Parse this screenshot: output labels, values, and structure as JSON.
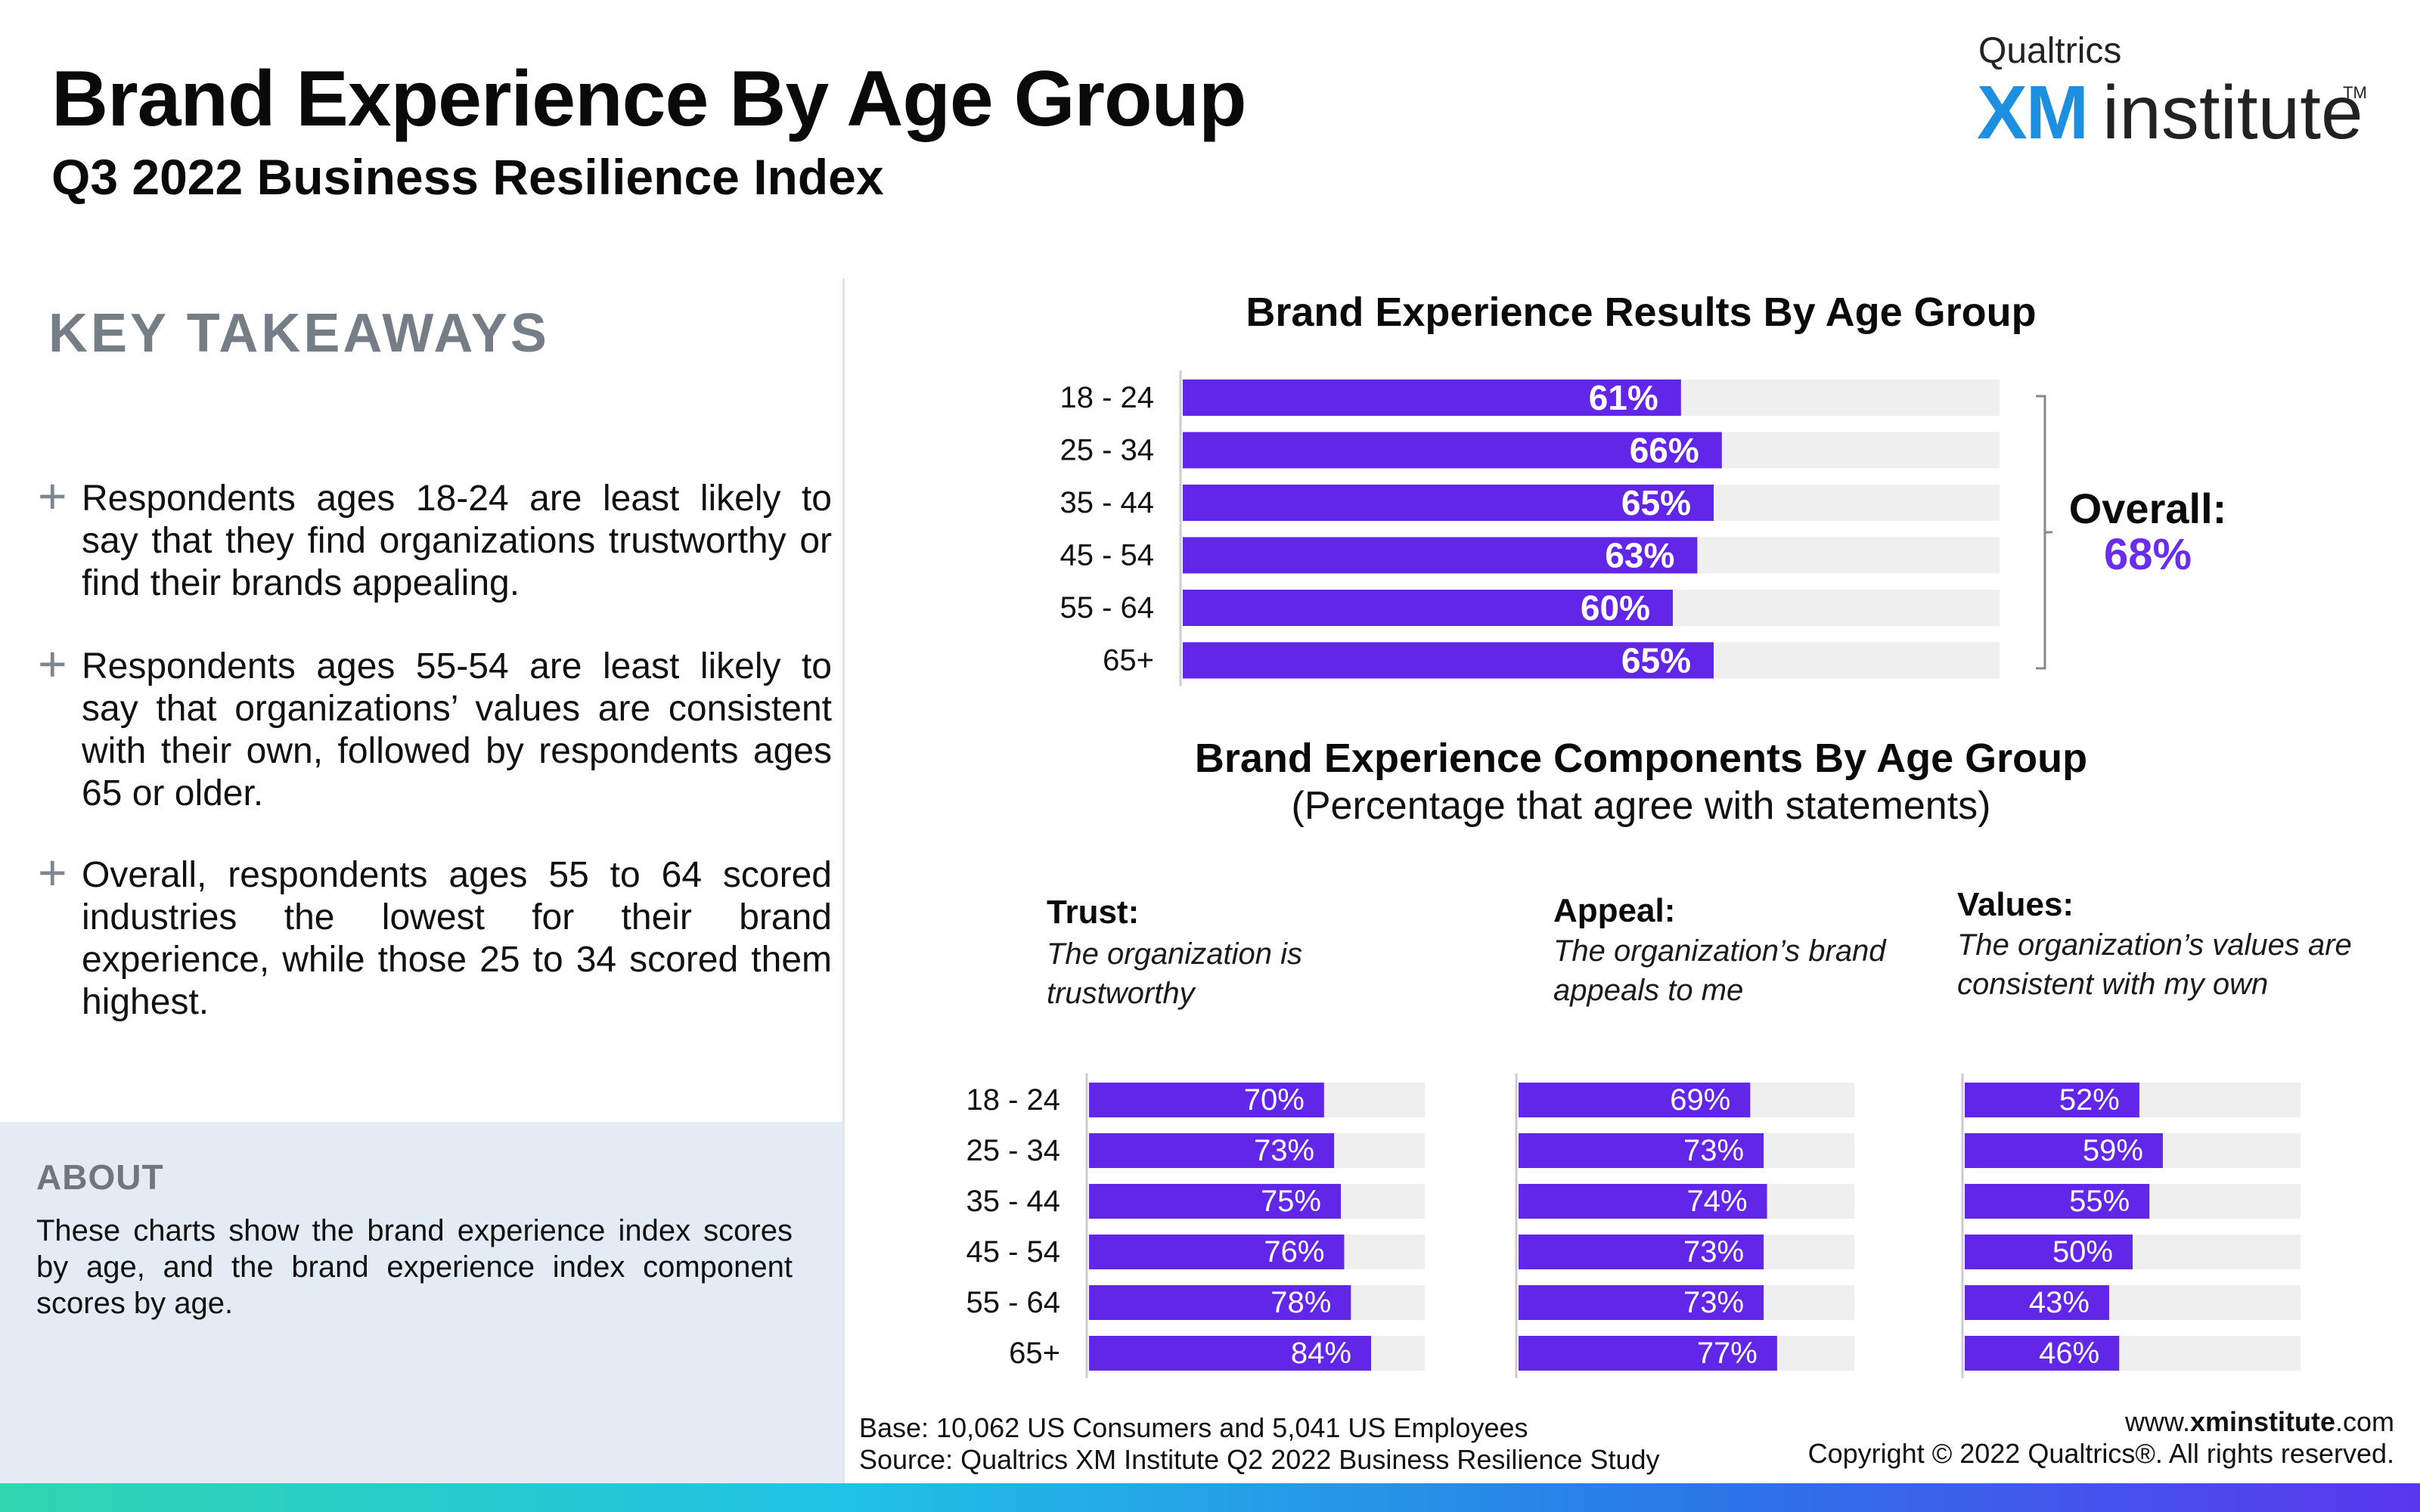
{
  "header": {
    "title": "Brand Experience By Age Group",
    "subtitle": "Q3 2022 Business Resilience Index"
  },
  "logo": {
    "brand": "Qualtrics",
    "xm": "XM",
    "institute": "institute",
    "tm": "TM"
  },
  "takeaways": {
    "heading": "KEY TAKEAWAYS",
    "items": [
      "Respondents ages 18-24 are least likely to say that they find organizations trustworthy or find their brands appealing.",
      "Respondents ages 55-54 are least likely to say that organizations’ values are consistent with their own, followed by respondents ages 65 or older.",
      "Overall, respondents ages 55 to 64 scored industries the lowest for their brand experience, while those 25 to 34 scored them highest."
    ]
  },
  "about": {
    "heading": "ABOUT",
    "text": "These charts show the brand experience index scores by age, and the brand experience index component scores by age."
  },
  "overall": {
    "label": "Overall:",
    "value": "68%"
  },
  "components": {
    "title": "Brand Experience Components By Age Group",
    "subtitle": "(Percentage that agree with statements)",
    "trust": {
      "heading": "Trust:",
      "description": "The organization is trustworthy"
    },
    "appeal": {
      "heading": "Appeal:",
      "description": "The organization’s brand appeals to me"
    },
    "values": {
      "heading": "Values:",
      "description": "The organization’s values are consistent with my own"
    }
  },
  "footer": {
    "base": "Base: 10,062 US Consumers and 5,041 US Employees",
    "source": "Source: Qualtrics XM Institute Q2 2022 Business Resilience Study",
    "url_prefix": "www.",
    "url_bold": "xminstitute",
    "url_suffix": ".com",
    "copyright": "Copyright © 2022 Qualtrics®. All rights reserved."
  },
  "colors": {
    "bar": "#6126e8",
    "track": "#efefef",
    "accent": "#6a2df0"
  },
  "chart_data": [
    {
      "type": "bar",
      "orientation": "horizontal",
      "title": "Brand Experience Results By Age Group",
      "categories": [
        "18 - 24",
        "25 - 34",
        "35 - 44",
        "45 - 54",
        "55 - 64",
        "65+"
      ],
      "values": [
        61,
        66,
        65,
        63,
        60,
        65
      ],
      "labels": [
        "61%",
        "66%",
        "65%",
        "63%",
        "60%",
        "65%"
      ],
      "xlim": [
        0,
        100
      ],
      "grid": false
    },
    {
      "type": "bar",
      "orientation": "horizontal",
      "title": "Trust:",
      "categories": [
        "18 - 24",
        "25 - 34",
        "35 - 44",
        "45 - 54",
        "55 - 64",
        "65+"
      ],
      "values": [
        70,
        73,
        75,
        76,
        78,
        84
      ],
      "labels": [
        "70%",
        "73%",
        "75%",
        "76%",
        "78%",
        "84%"
      ],
      "xlim": [
        0,
        100
      ]
    },
    {
      "type": "bar",
      "orientation": "horizontal",
      "title": "Appeal:",
      "categories": [
        "18 - 24",
        "25 - 34",
        "35 - 44",
        "45 - 54",
        "55 - 64",
        "65+"
      ],
      "values": [
        69,
        73,
        74,
        73,
        73,
        77
      ],
      "labels": [
        "69%",
        "73%",
        "74%",
        "73%",
        "73%",
        "77%"
      ],
      "xlim": [
        0,
        100
      ]
    },
    {
      "type": "bar",
      "orientation": "horizontal",
      "title": "Values:",
      "categories": [
        "18 - 24",
        "25 - 34",
        "35 - 44",
        "45 - 54",
        "55 - 64",
        "65+"
      ],
      "values": [
        52,
        59,
        55,
        50,
        43,
        46
      ],
      "labels": [
        "52%",
        "59%",
        "55%",
        "50%",
        "43%",
        "46%"
      ],
      "xlim": [
        0,
        100
      ]
    }
  ]
}
